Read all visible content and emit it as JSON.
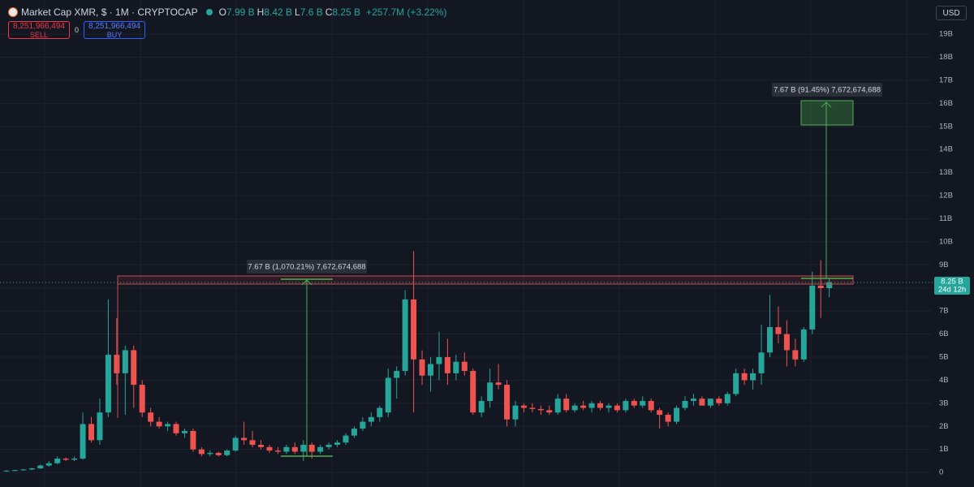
{
  "header": {
    "title": "Market Cap XMR, $ · 1M · CRYPTOCAP",
    "ohlc": [
      {
        "key": "O",
        "value": "7.99 B"
      },
      {
        "key": "H",
        "value": "8.42 B"
      },
      {
        "key": "L",
        "value": "7.6 B"
      },
      {
        "key": "C",
        "value": "8.25 B"
      }
    ],
    "change": "+257.7M (+3.22%)",
    "sell": {
      "price": "8,251,966,494",
      "label": "SELL"
    },
    "spread": "0",
    "buy": {
      "price": "8,251,966,494",
      "label": "BUY"
    },
    "currency": "USD"
  },
  "chart_data": {
    "type": "candlestick",
    "up_color": "#26a69a",
    "down_color": "#ef5350",
    "grid": true,
    "ylim": [
      -0.63,
      20.48
    ],
    "yticks": [
      0,
      {
        "value": 1,
        "label": "1B"
      },
      {
        "value": 2,
        "label": "2B"
      },
      {
        "value": 3,
        "label": "3B"
      },
      {
        "value": 4,
        "label": "4B"
      },
      {
        "value": 5,
        "label": "5B"
      },
      {
        "value": 6,
        "label": "6B"
      },
      {
        "value": 7,
        "label": "7B"
      },
      {
        "value": 8,
        "label": "8B"
      },
      {
        "value": 9,
        "label": "9B"
      },
      {
        "value": 10,
        "label": "10B"
      },
      {
        "value": 11,
        "label": "11B"
      },
      {
        "value": 12,
        "label": "12B"
      },
      {
        "value": 13,
        "label": "13B"
      },
      {
        "value": 14,
        "label": "14B"
      },
      {
        "value": 15,
        "label": "15B"
      },
      {
        "value": 16,
        "label": "16B"
      },
      {
        "value": 17,
        "label": "17B"
      },
      {
        "value": 18,
        "label": "18B"
      },
      {
        "value": 19,
        "label": "19B"
      }
    ],
    "open": [
      0.05,
      0.08,
      0.1,
      0.13,
      0.18,
      0.3,
      0.4,
      0.6,
      0.55,
      0.6,
      2.1,
      1.4,
      2.6,
      5.1,
      4.3,
      5.3,
      3.8,
      2.6,
      2.2,
      2.0,
      2.1,
      1.7,
      1.8,
      1.0,
      0.8,
      0.85,
      0.75,
      0.95,
      1.5,
      1.4,
      1.2,
      1.1,
      0.95,
      0.9,
      1.1,
      0.9,
      1.2,
      0.9,
      1.1,
      1.2,
      1.3,
      1.6,
      1.9,
      2.2,
      2.4,
      2.6,
      4.1,
      4.4,
      7.5,
      4.9,
      4.2,
      4.7,
      5.0,
      4.3,
      4.8,
      4.4,
      2.6,
      3.1,
      3.9,
      3.8,
      2.3,
      2.9,
      2.8,
      2.75,
      2.7,
      2.6,
      3.2,
      2.7,
      2.9,
      2.8,
      3.0,
      2.8,
      2.9,
      2.7,
      3.1,
      2.9,
      3.1,
      2.7,
      2.5,
      2.2,
      2.8,
      3.1,
      3.2,
      2.9,
      3.2,
      3.0,
      3.4,
      4.3,
      4.0,
      4.3,
      5.2,
      6.3,
      6.0,
      5.3,
      4.9,
      6.2,
      8.1,
      7.99
    ],
    "high": [
      0.1,
      0.12,
      0.15,
      0.2,
      0.35,
      0.5,
      0.7,
      0.65,
      0.7,
      2.6,
      2.4,
      3.2,
      7.5,
      6.7,
      5.5,
      5.5,
      4.0,
      2.8,
      2.4,
      2.2,
      2.2,
      1.9,
      1.9,
      1.1,
      0.95,
      0.9,
      1.0,
      1.6,
      2.2,
      1.8,
      1.4,
      1.2,
      1.1,
      1.2,
      1.3,
      1.4,
      1.3,
      1.2,
      1.3,
      1.4,
      1.7,
      2.0,
      2.4,
      2.6,
      2.9,
      4.5,
      4.6,
      7.9,
      9.6,
      5.3,
      5.0,
      6.1,
      5.8,
      5.1,
      5.2,
      4.5,
      3.3,
      4.5,
      4.7,
      4.0,
      3.1,
      3.0,
      3.0,
      2.9,
      2.9,
      3.4,
      3.4,
      3.0,
      3.1,
      3.1,
      3.1,
      3.0,
      3.0,
      3.2,
      3.2,
      3.3,
      3.2,
      2.8,
      2.6,
      2.9,
      3.3,
      3.4,
      3.3,
      3.2,
      3.3,
      3.5,
      4.5,
      4.5,
      4.5,
      6.4,
      7.7,
      7.2,
      6.6,
      5.8,
      6.3,
      8.7,
      9.2,
      8.42
    ],
    "low": [
      0.03,
      0.06,
      0.08,
      0.1,
      0.15,
      0.25,
      0.35,
      0.5,
      0.5,
      0.55,
      1.3,
      1.2,
      2.4,
      3.8,
      2.5,
      2.8,
      2.4,
      2.0,
      1.9,
      1.8,
      1.6,
      1.5,
      0.9,
      0.7,
      0.7,
      0.7,
      0.7,
      0.9,
      1.2,
      1.1,
      1.0,
      0.85,
      0.8,
      0.8,
      0.8,
      0.5,
      0.6,
      0.8,
      1.0,
      1.1,
      1.2,
      1.5,
      1.8,
      2.0,
      2.2,
      2.4,
      3.2,
      4.2,
      2.6,
      3.8,
      3.5,
      4.0,
      3.8,
      4.0,
      4.2,
      2.5,
      2.4,
      2.8,
      3.6,
      2.0,
      2.0,
      2.6,
      2.6,
      2.5,
      2.5,
      2.5,
      2.6,
      2.6,
      2.7,
      2.6,
      2.7,
      2.6,
      2.6,
      2.6,
      2.8,
      2.8,
      2.6,
      1.9,
      2.0,
      2.1,
      2.7,
      2.9,
      2.9,
      2.8,
      2.9,
      2.9,
      3.3,
      3.8,
      3.6,
      3.8,
      5.0,
      5.6,
      4.6,
      4.6,
      4.8,
      6.0,
      6.7,
      7.6
    ],
    "close": [
      0.08,
      0.1,
      0.13,
      0.18,
      0.3,
      0.4,
      0.6,
      0.55,
      0.6,
      2.1,
      1.4,
      2.6,
      5.1,
      4.3,
      5.3,
      3.8,
      2.6,
      2.2,
      2.0,
      2.1,
      1.7,
      1.8,
      1.0,
      0.8,
      0.85,
      0.75,
      0.95,
      1.5,
      1.4,
      1.2,
      1.1,
      0.95,
      0.9,
      1.1,
      0.9,
      1.2,
      0.9,
      1.1,
      1.2,
      1.3,
      1.6,
      1.9,
      2.2,
      2.4,
      2.8,
      4.1,
      4.4,
      7.5,
      4.9,
      4.2,
      4.7,
      5.0,
      4.3,
      4.8,
      4.4,
      2.6,
      3.1,
      3.9,
      3.8,
      2.3,
      2.9,
      2.8,
      2.75,
      2.7,
      2.6,
      3.2,
      2.7,
      2.9,
      2.8,
      3.0,
      2.8,
      2.9,
      2.7,
      3.1,
      2.9,
      3.1,
      2.7,
      2.5,
      2.2,
      2.8,
      3.1,
      3.2,
      2.9,
      3.2,
      3.0,
      3.4,
      4.3,
      4.0,
      4.3,
      5.2,
      6.3,
      6.0,
      5.3,
      4.9,
      6.2,
      8.1,
      7.99,
      8.25
    ],
    "annotations": [
      "7.67 B (1,070.21%) 7,672,674,688",
      "7.67 B (91.45%) 7,672,674,688"
    ],
    "price_label": "8.25 B",
    "countdown": "24d 12h"
  }
}
